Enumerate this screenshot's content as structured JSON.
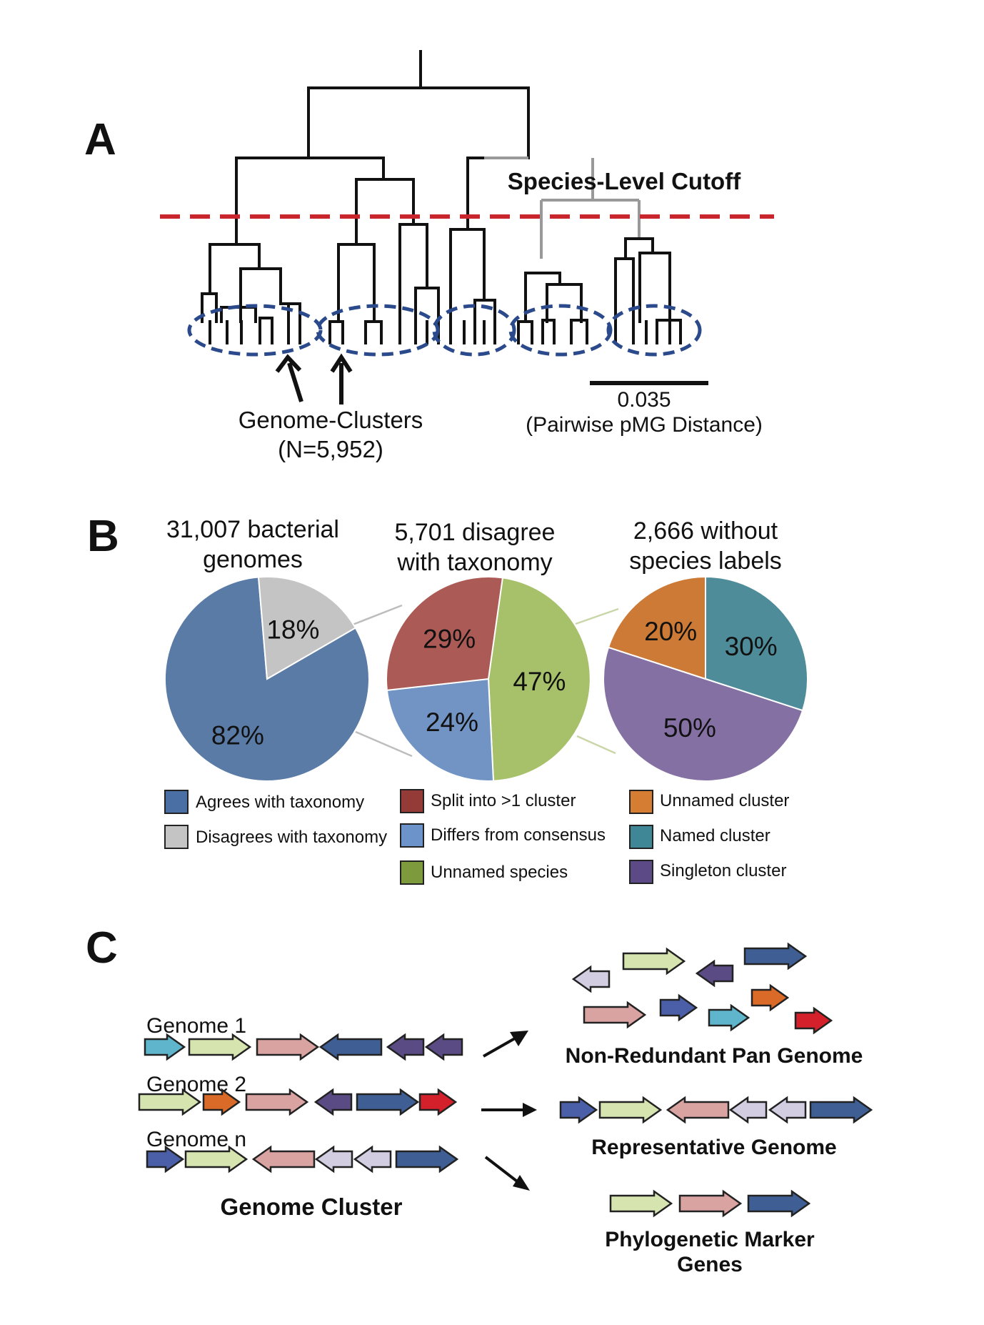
{
  "panels": {
    "a": "A",
    "b": "B",
    "c": "C"
  },
  "panel_a": {
    "cutoff_label": "Species-Level Cutoff",
    "clusters_label_line1": "Genome-Clusters",
    "clusters_label_line2": "(N=5,952)",
    "scale_value": "0.035",
    "scale_caption": "(Pairwise pMG Distance)",
    "colors": {
      "cutoff_line": "#c9252c",
      "ellipse": "#2b4a8b",
      "tree": "#111111",
      "tree_highlight": "#999999"
    }
  },
  "panel_b": {
    "pies": [
      {
        "title_line1": "31,007 bacterial",
        "title_line2": "genomes",
        "slices": [
          {
            "label": "82%",
            "value": 82,
            "color": "#5a7ba6"
          },
          {
            "label": "18%",
            "value": 18,
            "color": "#c4c4c4"
          }
        ]
      },
      {
        "title_line1": "5,701 disagree",
        "title_line2": "with taxonomy",
        "slices": [
          {
            "label": "47%",
            "value": 47,
            "color": "#a7c06a"
          },
          {
            "label": "24%",
            "value": 24,
            "color": "#7294c4"
          },
          {
            "label": "29%",
            "value": 29,
            "color": "#ab5a55"
          }
        ]
      },
      {
        "title_line1": "2,666 without",
        "title_line2": "species labels",
        "slices": [
          {
            "label": "30%",
            "value": 30,
            "color": "#4f8c9a"
          },
          {
            "label": "50%",
            "value": 50,
            "color": "#8470a3"
          },
          {
            "label": "20%",
            "value": 20,
            "color": "#cc7a35"
          }
        ]
      }
    ],
    "legend": [
      {
        "label": "Agrees with taxonomy",
        "color": "#4a6fa5"
      },
      {
        "label": "Disagrees with taxonomy",
        "color": "#c4c4c4"
      },
      {
        "label": "Split into >1 cluster",
        "color": "#943b38"
      },
      {
        "label": "Differs from consensus",
        "color": "#6c94cb"
      },
      {
        "label": "Unnamed species",
        "color": "#7d9a3c"
      },
      {
        "label": "Unnamed cluster",
        "color": "#d57d32"
      },
      {
        "label": "Named cluster",
        "color": "#3f8697"
      },
      {
        "label": "Singleton cluster",
        "color": "#5b4a86"
      }
    ]
  },
  "panel_c": {
    "genome_labels": [
      "Genome 1",
      "Genome 2",
      "Genome n"
    ],
    "cluster_label": "Genome Cluster",
    "outputs": [
      "Non-Redundant Pan Genome",
      "Representative Genome",
      "Phylogenetic Marker",
      "Genes"
    ],
    "gene_colors": {
      "cyan": "#5fb6cc",
      "lightgreen": "#d6e4b0",
      "pink": "#d9a3a1",
      "darkblue": "#3f5f94",
      "purple": "#5a4b85",
      "orange": "#d96a27",
      "red": "#d4202a",
      "royal": "#4a5fa8",
      "lavender": "#d3cde2"
    }
  }
}
